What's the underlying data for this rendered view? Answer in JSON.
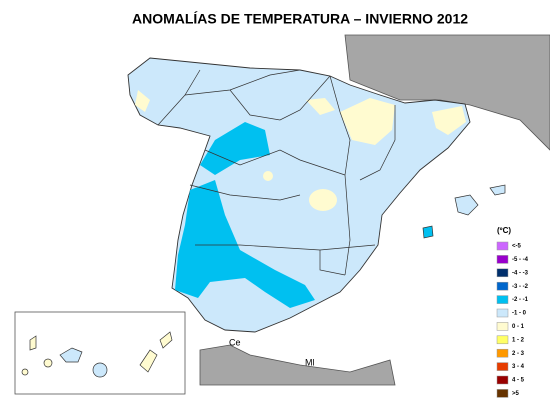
{
  "title": "ANOMALÍAS DE TEMPERATURA – INVIERNO 2012",
  "legend": {
    "unit": "(ºC)",
    "items": [
      {
        "label": "<-5",
        "color": "#cc66ff"
      },
      {
        "label": "-5 - -4",
        "color": "#9900cc"
      },
      {
        "label": "-4 - -3",
        "color": "#002f6c"
      },
      {
        "label": "-3 - -2",
        "color": "#0066cc"
      },
      {
        "label": "-2 - -1",
        "color": "#00c0f0"
      },
      {
        "label": "-1 - 0",
        "color": "#cce8fb"
      },
      {
        "label": "0 - 1",
        "color": "#fffbd0"
      },
      {
        "label": "1 - 2",
        "color": "#ffff66"
      },
      {
        "label": "2 - 3",
        "color": "#ff9900"
      },
      {
        "label": "3 - 4",
        "color": "#e63c00"
      },
      {
        "label": "4 - 5",
        "color": "#990000"
      },
      {
        "label": ">5",
        "color": "#663300"
      }
    ]
  },
  "places": [
    "Ce",
    "Ml"
  ]
}
